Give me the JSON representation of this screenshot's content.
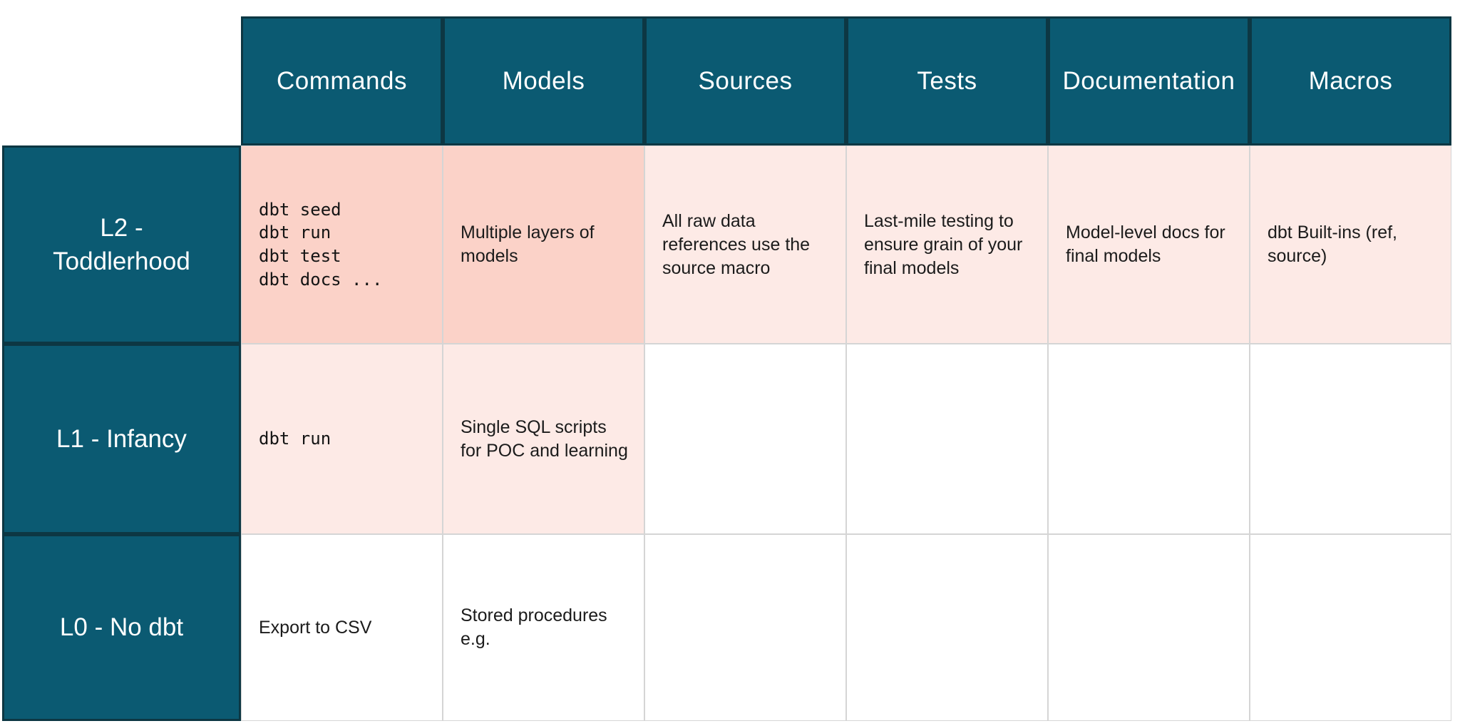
{
  "colors": {
    "header_teal": "#0b5a72",
    "header_border": "#0d3743",
    "cell_pink_strong": "#fbd2c8",
    "cell_pink_light": "#fdeae6",
    "gridline": "#d5d5d5",
    "header_text": "#ffffff",
    "body_text": "#1b1b1b"
  },
  "table": {
    "column_headers": [
      "Commands",
      "Models",
      "Sources",
      "Tests",
      "Documentation",
      "Macros"
    ],
    "rows": [
      {
        "label": "L2 - Toddlerhood",
        "cells": {
          "commands": "dbt seed\ndbt run\ndbt test\ndbt docs ...",
          "models": "Multiple layers of models",
          "sources": "All raw data references use the source macro",
          "tests": "Last-mile testing to ensure grain of your final models",
          "documentation": "Model-level docs for final models",
          "macros": "dbt Built-ins (ref, source)"
        }
      },
      {
        "label": "L1 - Infancy",
        "cells": {
          "commands": "dbt run",
          "models": "Single SQL scripts for POC and learning",
          "sources": "",
          "tests": "",
          "documentation": "",
          "macros": ""
        }
      },
      {
        "label": "L0 - No dbt",
        "cells": {
          "commands": "Export to CSV",
          "models": "Stored procedures e.g.",
          "sources": "",
          "tests": "",
          "documentation": "",
          "macros": ""
        }
      }
    ]
  }
}
